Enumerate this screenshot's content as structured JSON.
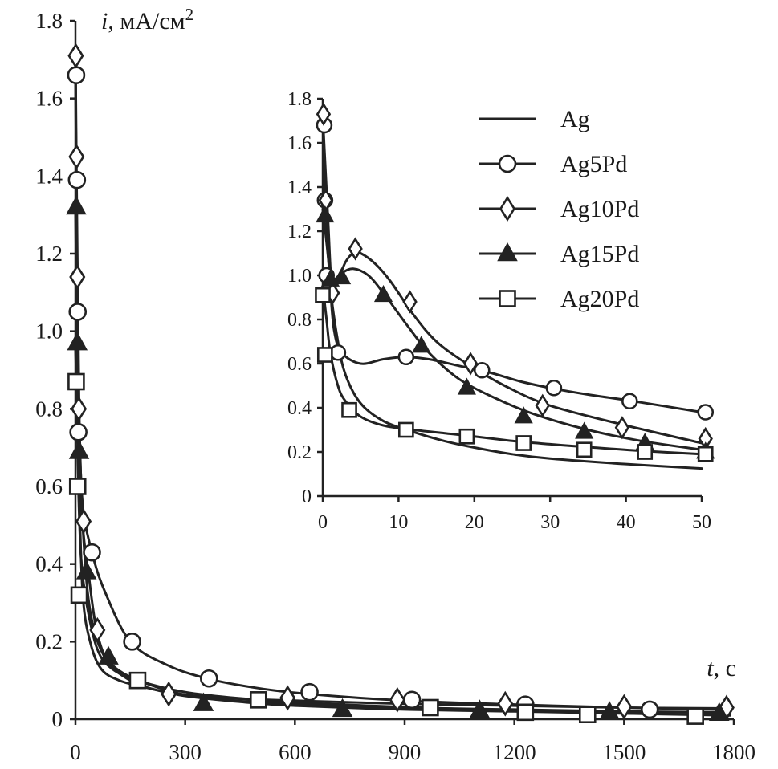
{
  "chart_data": [
    {
      "type": "line",
      "name": "main",
      "ylabel_italic": "i",
      "ylabel_rest": ", мА/см",
      "ylabel_sup": "2",
      "xlabel_italic": "t",
      "xlabel_rest": ", с",
      "xlim": [
        0,
        1800
      ],
      "ylim": [
        0,
        1.8
      ],
      "xticks": [
        "0",
        "300",
        "600",
        "900",
        "1200",
        "1500",
        "1800"
      ],
      "yticks": [
        "0",
        "0.2",
        "0.4",
        "0.6",
        "0.8",
        "1.0",
        "1.2",
        "1.4",
        "1.6",
        "1.8"
      ],
      "series": [
        {
          "name": "Ag",
          "marker": "none",
          "curve": [
            [
              0,
              1.7
            ],
            [
              5,
              0.95
            ],
            [
              10,
              0.6
            ],
            [
              20,
              0.32
            ],
            [
              40,
              0.2
            ],
            [
              70,
              0.13
            ],
            [
              120,
              0.1
            ],
            [
              200,
              0.08
            ],
            [
              300,
              0.06
            ],
            [
              450,
              0.045
            ],
            [
              600,
              0.035
            ],
            [
              900,
              0.025
            ],
            [
              1200,
              0.02
            ],
            [
              1500,
              0.015
            ],
            [
              1790,
              0.012
            ]
          ],
          "points": []
        },
        {
          "name": "Ag5Pd",
          "marker": "circle",
          "curve": [
            [
              0,
              1.7
            ],
            [
              5,
              1.0
            ],
            [
              10,
              0.75
            ],
            [
              20,
              0.55
            ],
            [
              45,
              0.43
            ],
            [
              80,
              0.33
            ],
            [
              150,
              0.2
            ],
            [
              250,
              0.14
            ],
            [
              360,
              0.105
            ],
            [
              500,
              0.08
            ],
            [
              640,
              0.065
            ],
            [
              900,
              0.048
            ],
            [
              1200,
              0.038
            ],
            [
              1500,
              0.03
            ],
            [
              1790,
              0.025
            ]
          ],
          "points": [
            [
              2,
              1.66
            ],
            [
              4,
              1.39
            ],
            [
              6,
              1.05
            ],
            [
              8,
              0.74
            ],
            [
              45,
              0.43
            ],
            [
              155,
              0.2
            ],
            [
              365,
              0.105
            ],
            [
              640,
              0.07
            ],
            [
              920,
              0.05
            ],
            [
              1230,
              0.038
            ],
            [
              1570,
              0.025
            ]
          ]
        },
        {
          "name": "Ag10Pd",
          "marker": "diamond",
          "curve": [
            [
              0,
              1.72
            ],
            [
              5,
              1.2
            ],
            [
              10,
              0.8
            ],
            [
              20,
              0.5
            ],
            [
              40,
              0.28
            ],
            [
              80,
              0.16
            ],
            [
              150,
              0.1
            ],
            [
              250,
              0.07
            ],
            [
              400,
              0.055
            ],
            [
              600,
              0.048
            ],
            [
              900,
              0.04
            ],
            [
              1200,
              0.035
            ],
            [
              1500,
              0.03
            ],
            [
              1790,
              0.028
            ]
          ],
          "points": [
            [
              1,
              1.71
            ],
            [
              3,
              1.45
            ],
            [
              5,
              1.14
            ],
            [
              9,
              0.8
            ],
            [
              22,
              0.51
            ],
            [
              60,
              0.23
            ],
            [
              255,
              0.065
            ],
            [
              580,
              0.055
            ],
            [
              880,
              0.05
            ],
            [
              1175,
              0.04
            ],
            [
              1500,
              0.032
            ],
            [
              1780,
              0.03
            ]
          ]
        },
        {
          "name": "Ag15Pd",
          "marker": "triangle",
          "curve": [
            [
              0,
              1.3
            ],
            [
              5,
              0.97
            ],
            [
              10,
              0.72
            ],
            [
              20,
              0.5
            ],
            [
              35,
              0.38
            ],
            [
              60,
              0.22
            ],
            [
              100,
              0.14
            ],
            [
              200,
              0.09
            ],
            [
              350,
              0.055
            ],
            [
              600,
              0.04
            ],
            [
              900,
              0.03
            ],
            [
              1200,
              0.025
            ],
            [
              1500,
              0.02
            ],
            [
              1790,
              0.018
            ]
          ],
          "points": [
            [
              2,
              1.32
            ],
            [
              5,
              0.97
            ],
            [
              10,
              0.69
            ],
            [
              30,
              0.38
            ],
            [
              90,
              0.16
            ],
            [
              350,
              0.04
            ],
            [
              730,
              0.025
            ],
            [
              1105,
              0.022
            ],
            [
              1460,
              0.018
            ],
            [
              1760,
              0.015
            ]
          ]
        },
        {
          "name": "Ag20Pd",
          "marker": "square",
          "curve": [
            [
              0,
              0.95
            ],
            [
              3,
              0.85
            ],
            [
              8,
              0.6
            ],
            [
              15,
              0.42
            ],
            [
              30,
              0.3
            ],
            [
              60,
              0.18
            ],
            [
              100,
              0.13
            ],
            [
              170,
              0.1
            ],
            [
              300,
              0.07
            ],
            [
              500,
              0.05
            ],
            [
              800,
              0.035
            ],
            [
              1200,
              0.022
            ],
            [
              1500,
              0.015
            ],
            [
              1790,
              0.01
            ]
          ],
          "points": [
            [
              2,
              0.87
            ],
            [
              6,
              0.6
            ],
            [
              10,
              0.32
            ],
            [
              170,
              0.1
            ],
            [
              500,
              0.05
            ],
            [
              970,
              0.03
            ],
            [
              1230,
              0.018
            ],
            [
              1400,
              0.012
            ],
            [
              1695,
              0.008
            ]
          ]
        }
      ]
    },
    {
      "type": "line",
      "name": "inset",
      "xlim": [
        0,
        50
      ],
      "ylim": [
        0,
        1.8
      ],
      "xticks": [
        "0",
        "10",
        "20",
        "30",
        "40",
        "50"
      ],
      "yticks": [
        "0",
        "0.2",
        "0.4",
        "0.6",
        "0.8",
        "1.0",
        "1.2",
        "1.4",
        "1.6",
        "1.8"
      ],
      "series": [
        {
          "name": "Ag",
          "marker": "none",
          "curve": [
            [
              0,
              1.7
            ],
            [
              0.5,
              1.25
            ],
            [
              1,
              0.95
            ],
            [
              2,
              0.7
            ],
            [
              3,
              0.55
            ],
            [
              5,
              0.42
            ],
            [
              8,
              0.34
            ],
            [
              12,
              0.29
            ],
            [
              16,
              0.25
            ],
            [
              20,
              0.22
            ],
            [
              25,
              0.19
            ],
            [
              30,
              0.17
            ],
            [
              40,
              0.145
            ],
            [
              50,
              0.125
            ]
          ],
          "points": []
        },
        {
          "name": "Ag5Pd",
          "marker": "circle",
          "curve": [
            [
              0,
              1.7
            ],
            [
              0.5,
              1.3
            ],
            [
              1,
              0.95
            ],
            [
              1.5,
              0.75
            ],
            [
              2.5,
              0.65
            ],
            [
              5,
              0.6
            ],
            [
              8,
              0.62
            ],
            [
              11,
              0.63
            ],
            [
              14,
              0.62
            ],
            [
              18,
              0.59
            ],
            [
              22,
              0.56
            ],
            [
              26,
              0.52
            ],
            [
              30,
              0.49
            ],
            [
              35,
              0.46
            ],
            [
              41,
              0.43
            ],
            [
              50,
              0.38
            ]
          ],
          "points": [
            [
              0.2,
              1.68
            ],
            [
              0.3,
              1.34
            ],
            [
              0.5,
              1.0
            ],
            [
              2.0,
              0.65
            ],
            [
              11,
              0.63
            ],
            [
              21,
              0.57
            ],
            [
              30.5,
              0.49
            ],
            [
              40.5,
              0.43
            ],
            [
              50.5,
              0.38
            ]
          ]
        },
        {
          "name": "Ag10Pd",
          "marker": "diamond",
          "curve": [
            [
              0,
              1.72
            ],
            [
              0.7,
              1.25
            ],
            [
              1.2,
              0.95
            ],
            [
              2,
              0.98
            ],
            [
              3,
              1.06
            ],
            [
              4,
              1.1
            ],
            [
              5,
              1.1
            ],
            [
              7,
              1.05
            ],
            [
              9,
              0.97
            ],
            [
              12,
              0.82
            ],
            [
              15,
              0.7
            ],
            [
              19,
              0.6
            ],
            [
              24,
              0.5
            ],
            [
              30,
              0.41
            ],
            [
              40,
              0.32
            ],
            [
              50,
              0.24
            ]
          ],
          "points": [
            [
              0.1,
              1.73
            ],
            [
              0.4,
              1.34
            ],
            [
              1.3,
              0.92
            ],
            [
              4.3,
              1.12
            ],
            [
              11.5,
              0.88
            ],
            [
              19.5,
              0.6
            ],
            [
              29,
              0.41
            ],
            [
              39.5,
              0.31
            ],
            [
              50.5,
              0.26
            ]
          ]
        },
        {
          "name": "Ag15Pd",
          "marker": "triangle",
          "curve": [
            [
              0,
              1.3
            ],
            [
              0.5,
              1.15
            ],
            [
              1,
              1.0
            ],
            [
              1.5,
              0.98
            ],
            [
              2.5,
              1.01
            ],
            [
              4,
              1.03
            ],
            [
              6,
              1.0
            ],
            [
              8,
              0.92
            ],
            [
              11,
              0.78
            ],
            [
              14,
              0.65
            ],
            [
              18,
              0.53
            ],
            [
              23,
              0.44
            ],
            [
              28,
              0.37
            ],
            [
              35,
              0.3
            ],
            [
              42,
              0.25
            ],
            [
              50,
              0.21
            ]
          ],
          "points": [
            [
              0.3,
              1.27
            ],
            [
              1.0,
              0.98
            ],
            [
              2.5,
              0.99
            ],
            [
              8,
              0.91
            ],
            [
              13,
              0.68
            ],
            [
              19,
              0.49
            ],
            [
              26.5,
              0.36
            ],
            [
              34.5,
              0.29
            ],
            [
              42.5,
              0.24
            ],
            [
              50.5,
              0.2
            ]
          ]
        },
        {
          "name": "Ag20Pd",
          "marker": "square",
          "curve": [
            [
              0,
              0.95
            ],
            [
              0.5,
              0.8
            ],
            [
              1,
              0.65
            ],
            [
              2,
              0.5
            ],
            [
              3,
              0.43
            ],
            [
              5,
              0.36
            ],
            [
              8,
              0.32
            ],
            [
              12,
              0.3
            ],
            [
              16,
              0.285
            ],
            [
              20,
              0.27
            ],
            [
              25,
              0.25
            ],
            [
              30,
              0.235
            ],
            [
              35,
              0.222
            ],
            [
              42,
              0.205
            ],
            [
              50,
              0.19
            ]
          ],
          "points": [
            [
              0,
              0.91
            ],
            [
              0.3,
              0.64
            ],
            [
              3.5,
              0.39
            ],
            [
              11,
              0.3
            ],
            [
              19,
              0.27
            ],
            [
              26.5,
              0.24
            ],
            [
              34.5,
              0.21
            ],
            [
              42.5,
              0.2
            ],
            [
              50.5,
              0.19
            ]
          ]
        }
      ]
    }
  ],
  "legend": {
    "placement": "top-right",
    "entries": [
      {
        "label": "Ag",
        "marker": "none"
      },
      {
        "label": "Ag5Pd",
        "marker": "circle"
      },
      {
        "label": "Ag10Pd",
        "marker": "diamond"
      },
      {
        "label": "Ag15Pd",
        "marker": "triangle"
      },
      {
        "label": "Ag20Pd",
        "marker": "square"
      }
    ]
  },
  "colors": {
    "ink": "#222222",
    "background": "#ffffff"
  }
}
